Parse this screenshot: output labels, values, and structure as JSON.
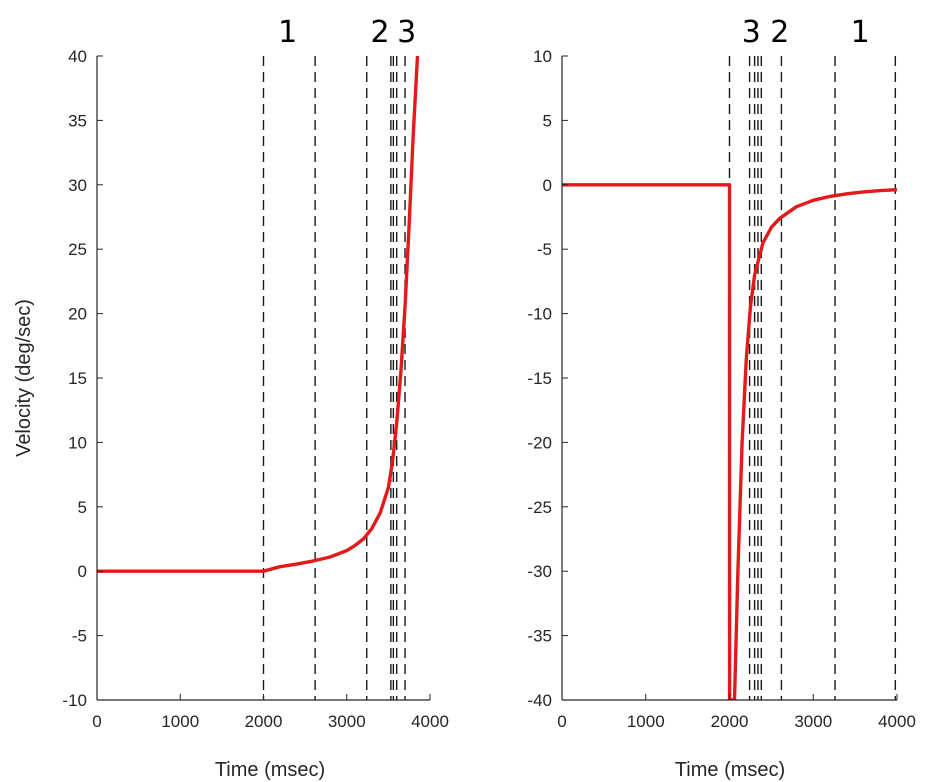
{
  "colors": {
    "curve": "#e31a1c",
    "axis": "#262626",
    "dashed": "#1a1a1a"
  },
  "chart_data": [
    {
      "type": "line",
      "title": "",
      "xlabel": "Time (msec)",
      "ylabel": "Velocity (deg/sec)",
      "xlim": [
        0,
        4000
      ],
      "ylim": [
        -10,
        40
      ],
      "xticks": [
        0,
        1000,
        2000,
        3000,
        4000
      ],
      "yticks": [
        -10,
        -5,
        0,
        5,
        10,
        15,
        20,
        25,
        30,
        35,
        40
      ],
      "grid": false,
      "series": [
        {
          "x": [
            0,
            2000,
            2200,
            2400,
            2600,
            2800,
            3000,
            3100,
            3200,
            3300,
            3400,
            3500,
            3550,
            3600,
            3650,
            3700,
            3750,
            3800,
            3850
          ],
          "y": [
            0,
            0,
            0.35,
            0.55,
            0.8,
            1.1,
            1.6,
            2.0,
            2.5,
            3.3,
            4.5,
            6.5,
            8.5,
            11.5,
            15.5,
            20.5,
            27,
            34,
            40
          ]
        }
      ],
      "vertical_lines_x": [
        2000,
        2620,
        3240,
        3530,
        3560,
        3600,
        3700
      ],
      "annotations": [
        {
          "text": "1",
          "x": 2290
        },
        {
          "text": "2",
          "x": 3400
        },
        {
          "text": "3",
          "x": 3720
        }
      ]
    },
    {
      "type": "line",
      "title": "",
      "xlabel": "Time (msec)",
      "ylabel": "",
      "xlim": [
        0,
        4000
      ],
      "ylim": [
        -40,
        10
      ],
      "xticks": [
        0,
        1000,
        2000,
        3000,
        4000
      ],
      "yticks": [
        -40,
        -35,
        -30,
        -25,
        -20,
        -15,
        -10,
        -5,
        0,
        5,
        10
      ],
      "grid": false,
      "series": [
        {
          "x": [
            0,
            2000,
            2001,
            2060,
            2100,
            2150,
            2200,
            2250,
            2300,
            2400,
            2500,
            2600,
            2800,
            3000,
            3200,
            3400,
            3600,
            3800,
            4000
          ],
          "y": [
            0,
            0,
            -40,
            -40,
            -30,
            -20,
            -13.5,
            -9.5,
            -7,
            -4.5,
            -3.3,
            -2.6,
            -1.7,
            -1.2,
            -0.9,
            -0.7,
            -0.55,
            -0.45,
            -0.38
          ]
        }
      ],
      "vertical_lines_x": [
        2000,
        2240,
        2300,
        2340,
        2380,
        2620,
        3260,
        3980
      ],
      "annotations": [
        {
          "text": "3",
          "x": 2260
        },
        {
          "text": "2",
          "x": 2600
        },
        {
          "text": "1",
          "x": 3560
        }
      ]
    }
  ]
}
